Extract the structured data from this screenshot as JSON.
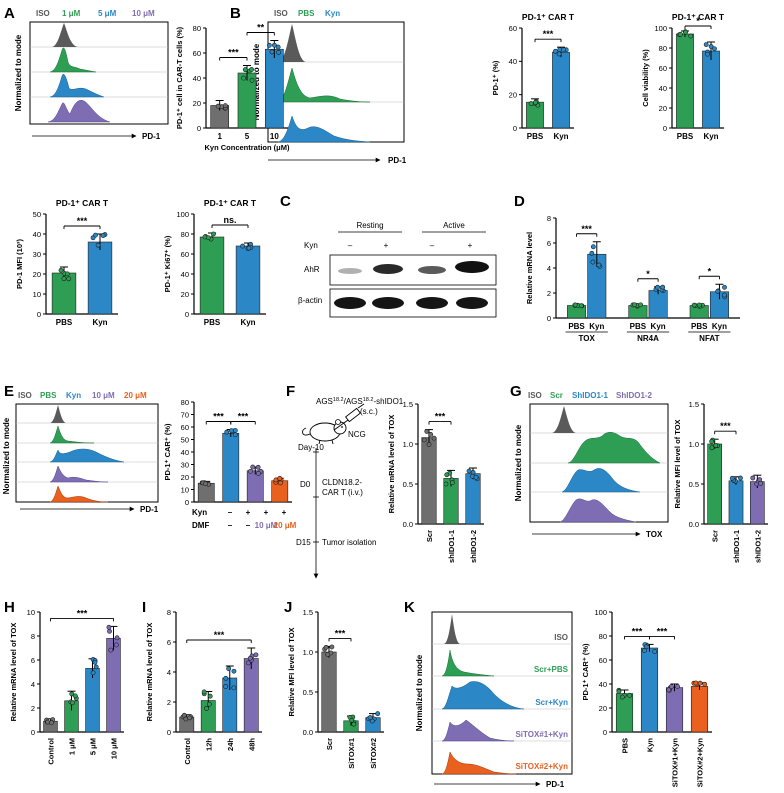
{
  "colors": {
    "iso": "#5a5a5a",
    "green": "#2f9e55",
    "blue": "#2b87c6",
    "purple": "#7e6db3",
    "orange": "#e9601f",
    "gray": "#6f6f6f"
  },
  "panels": {
    "A": "A",
    "B": "B",
    "C": "C",
    "D": "D",
    "E": "E",
    "F": "F",
    "G": "G",
    "H": "H",
    "I": "I",
    "J": "J",
    "K": "K"
  },
  "common": {
    "norm_mode": "Normalized to mode",
    "pd1": "PD-1",
    "tox": "TOX",
    "pbs": "PBS",
    "kyn": "Kyn",
    "scr": "Scr",
    "iso": "ISO"
  },
  "A": {
    "legend": [
      "ISO",
      "1 μM",
      "5 μM",
      "10 μM"
    ]
  },
  "B": {
    "legend": [
      "ISO",
      "PBS",
      "Kyn"
    ]
  },
  "E": {
    "legend": [
      "ISO",
      "PBS",
      "Kyn",
      "10 μM",
      "20 μM"
    ]
  },
  "G": {
    "legend": [
      "ISO",
      "Scr",
      "ShIDO1-1",
      "ShIDO1-2"
    ]
  },
  "K": {
    "legend": [
      "ISO",
      "Scr+PBS",
      "Scr+Kyn",
      "SiTOX#1+Kyn",
      "SiTOX#2+Kyn"
    ]
  },
  "C": {
    "groups": [
      "Resting",
      "Active"
    ],
    "kyn_label": "Kyn",
    "kyn_signs": [
      "–",
      "+",
      "–",
      "+"
    ],
    "rows": [
      "AhR",
      "β-actin"
    ]
  },
  "E_table": {
    "rows": [
      {
        "label": "Kyn",
        "vals": [
          "–",
          "+",
          "+",
          "+"
        ]
      },
      {
        "label": "DMF",
        "vals": [
          "–",
          "–",
          "10 μM",
          "20 μM"
        ]
      }
    ]
  },
  "F_schema": {
    "cells": "AGS",
    "cells_sup": "18.2",
    "cells2": "/AGS",
    "cells2_sup": "18.2",
    "cells_tail": "-shIDO1",
    "route": "(s.c.)",
    "mouse": "NCG",
    "day10": "Day-10",
    "d0": "D0",
    "d0_text1": "CLDN18.2-",
    "d0_text2": "CAR T (i.v.)",
    "d15": "D15",
    "d15_text": "Tumor isolation"
  },
  "chart_data": [
    {
      "id": "A_bar",
      "type": "bar",
      "title": "",
      "xlabel": "Kyn Concentration (μM)",
      "ylabel": "PD-1⁺ cell in CAR-T cells (%)",
      "categories": [
        "1",
        "5",
        "10"
      ],
      "values": [
        18,
        44,
        63
      ],
      "errors": [
        4,
        6,
        7
      ],
      "ylim": [
        0,
        80
      ],
      "yticks": [
        0,
        20,
        40,
        60,
        80
      ],
      "sig": [
        {
          "a": 0,
          "b": 1,
          "text": "***"
        },
        {
          "a": 1,
          "b": 2,
          "text": "**"
        }
      ]
    },
    {
      "id": "B_pd1",
      "type": "bar",
      "title": "PD-1⁺ CAR T",
      "ylabel": "PD-1⁺ (%)",
      "categories": [
        "PBS",
        "Kyn"
      ],
      "values": [
        15.5,
        45.5
      ],
      "errors": [
        2,
        3
      ],
      "ylim": [
        0,
        60
      ],
      "yticks": [
        0,
        20,
        40,
        60
      ],
      "sig": [
        {
          "a": 0,
          "b": 1,
          "text": "***"
        }
      ]
    },
    {
      "id": "B_via",
      "type": "bar",
      "title": "PD-1⁺ CAR T",
      "ylabel": "Cell viability (%)",
      "categories": [
        "PBS",
        "Kyn"
      ],
      "values": [
        94,
        77
      ],
      "errors": [
        3,
        9
      ],
      "ylim": [
        0,
        100
      ],
      "yticks": [
        0,
        20,
        40,
        60,
        80,
        100
      ],
      "sig": [
        {
          "a": 0,
          "b": 1,
          "text": "*"
        }
      ]
    },
    {
      "id": "B_mfi",
      "type": "bar",
      "title": "PD-1⁺ CAR T",
      "ylabel": "PD-1 MFI (10³)",
      "categories": [
        "PBS",
        "Kyn"
      ],
      "values": [
        20.5,
        36
      ],
      "errors": [
        3,
        4
      ],
      "ylim": [
        0,
        50
      ],
      "yticks": [
        0,
        10,
        20,
        30,
        40,
        50
      ],
      "sig": [
        {
          "a": 0,
          "b": 1,
          "text": "***"
        }
      ]
    },
    {
      "id": "B_ki67",
      "type": "bar",
      "title": "PD-1⁺ CAR T",
      "ylabel": "PD-1⁺ Ki67⁺ (%)",
      "categories": [
        "PBS",
        "Kyn"
      ],
      "values": [
        77,
        68
      ],
      "errors": [
        4,
        3
      ],
      "ylim": [
        0,
        100
      ],
      "yticks": [
        0,
        20,
        40,
        60,
        80,
        100
      ],
      "sig": [
        {
          "a": 0,
          "b": 1,
          "text": "ns."
        }
      ]
    },
    {
      "id": "D_bar",
      "type": "bar",
      "title": "",
      "ylabel": "Relative mRNA level",
      "groups": [
        "TOX",
        "NR4A",
        "NFAT"
      ],
      "categories": [
        "PBS",
        "Kyn",
        "PBS",
        "Kyn",
        "PBS",
        "Kyn"
      ],
      "values": [
        1,
        5.1,
        1,
        2.2,
        1,
        2.1
      ],
      "errors": [
        0.1,
        1,
        0.1,
        0.3,
        0.1,
        0.6
      ],
      "ylim": [
        0,
        8
      ],
      "yticks": [
        0,
        2,
        4,
        6,
        8
      ],
      "sig": [
        {
          "a": 0,
          "b": 1,
          "text": "***"
        },
        {
          "a": 2,
          "b": 3,
          "text": "*"
        },
        {
          "a": 4,
          "b": 5,
          "text": "*"
        }
      ]
    },
    {
      "id": "E_bar",
      "type": "bar",
      "title": "",
      "ylabel": "PD-1⁺ CAR⁺ (%)",
      "categories": [
        "1",
        "2",
        "3",
        "4"
      ],
      "values": [
        15,
        55,
        25,
        17
      ],
      "errors": [
        1.5,
        3,
        3,
        2
      ],
      "ylim": [
        0,
        80
      ],
      "yticks": [
        0,
        10,
        20,
        30,
        40,
        50,
        60,
        70,
        80
      ],
      "sig": [
        {
          "a": 0,
          "b": 1,
          "text": "***"
        },
        {
          "a": 1,
          "b": 2,
          "text": "***"
        }
      ]
    },
    {
      "id": "F_bar",
      "type": "bar",
      "title": "",
      "ylabel": "Relative mRNA level of TOX",
      "categories": [
        "Scr",
        "shIDO1-1",
        "shIDO1-2"
      ],
      "values": [
        1.08,
        0.57,
        0.63
      ],
      "errors": [
        0.1,
        0.1,
        0.07
      ],
      "ylim": [
        0,
        1.5
      ],
      "yticks": [
        0,
        0.5,
        1.0,
        1.5
      ],
      "yticklabels": [
        "0.0",
        "0.5",
        "1.0",
        "1.5"
      ],
      "sig": [
        {
          "a": 0,
          "b": 1,
          "text": "***"
        }
      ]
    },
    {
      "id": "G_bar",
      "type": "bar",
      "title": "",
      "ylabel": "Relative MFI level of TOX",
      "categories": [
        "Scr",
        "shIDO1-1",
        "shIDO1-2"
      ],
      "values": [
        1.0,
        0.54,
        0.53
      ],
      "errors": [
        0.06,
        0.05,
        0.08
      ],
      "ylim": [
        0,
        1.5
      ],
      "yticks": [
        0,
        0.5,
        1.0,
        1.5
      ],
      "yticklabels": [
        "0.0",
        "0.5",
        "1.0",
        "1.5"
      ],
      "sig": [
        {
          "a": 0,
          "b": 1,
          "text": "***"
        }
      ]
    },
    {
      "id": "H_bar",
      "type": "bar",
      "title": "",
      "ylabel": "Relative mRNA level of TOX",
      "categories": [
        "Control",
        "1 μM",
        "5 μM",
        "10 μM"
      ],
      "values": [
        0.9,
        2.6,
        5.3,
        7.8
      ],
      "errors": [
        0.2,
        0.8,
        0.8,
        1
      ],
      "ylim": [
        0,
        10
      ],
      "yticks": [
        0,
        2,
        4,
        6,
        8,
        10
      ],
      "sig": [
        {
          "a": 0,
          "b": 3,
          "text": "***"
        }
      ]
    },
    {
      "id": "I_bar",
      "type": "bar",
      "title": "",
      "ylabel": "Relative mRNA level of TOX",
      "categories": [
        "Control",
        "12h",
        "24h",
        "48h"
      ],
      "values": [
        1,
        2.1,
        3.6,
        4.9
      ],
      "errors": [
        0.15,
        0.6,
        0.8,
        0.7
      ],
      "ylim": [
        0,
        8
      ],
      "yticks": [
        0,
        2,
        4,
        6,
        8
      ],
      "sig": [
        {
          "a": 0,
          "b": 3,
          "text": "***"
        }
      ]
    },
    {
      "id": "J_bar",
      "type": "bar",
      "title": "",
      "ylabel": "Relative MFI level of TOX",
      "categories": [
        "Scr",
        "SiTOX#1",
        "SiTOX#2"
      ],
      "values": [
        1.0,
        0.14,
        0.18
      ],
      "errors": [
        0.07,
        0.06,
        0.05
      ],
      "ylim": [
        0,
        1.5
      ],
      "yticks": [
        0,
        0.5,
        1.0,
        1.5
      ],
      "yticklabels": [
        "0.0",
        "0.5",
        "1.0",
        "1.5"
      ],
      "sig": [
        {
          "a": 0,
          "b": 1,
          "text": "***"
        }
      ]
    },
    {
      "id": "K_bar",
      "type": "bar",
      "title": "",
      "ylabel": "PD-1⁺ CAR⁺ (%)",
      "categories": [
        "PBS",
        "Kyn",
        "SiTOX#1+Kyn",
        "SiTOX#2+Kyn"
      ],
      "values": [
        32,
        70,
        37,
        38
      ],
      "errors": [
        3,
        3,
        3,
        3
      ],
      "ylim": [
        0,
        100
      ],
      "yticks": [
        0,
        20,
        40,
        60,
        80,
        100
      ],
      "sig": [
        {
          "a": 0,
          "b": 1,
          "text": "***"
        },
        {
          "a": 1,
          "b": 2,
          "text": "***"
        }
      ]
    }
  ]
}
